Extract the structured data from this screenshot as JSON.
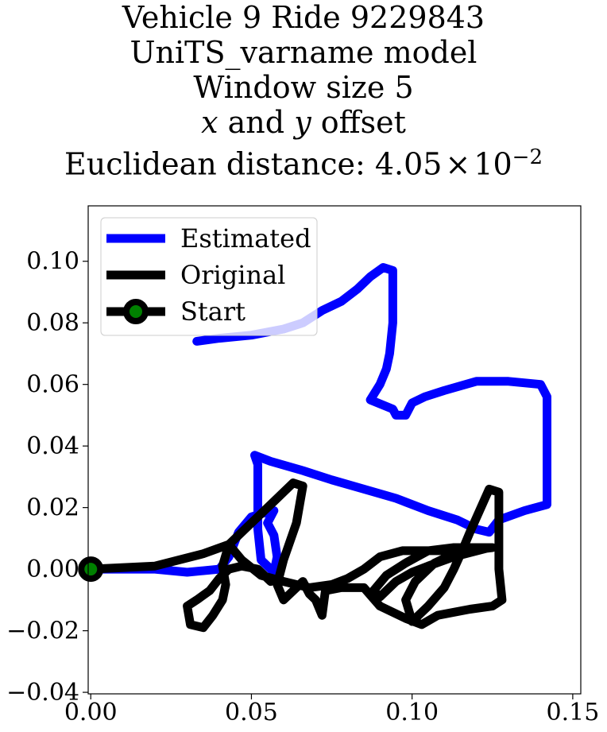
{
  "chart_data": {
    "type": "line",
    "title_lines": [
      "Vehicle 9 Ride 9229843",
      "UniTS_varname model",
      "Window size 5"
    ],
    "title_offset": {
      "x": "x",
      "and": " and ",
      "y": "y",
      "rest": " offset"
    },
    "title_distance": {
      "prefix": "Euclidean distance: ",
      "mantissa": "4.05",
      "times": "×",
      "base": "10",
      "exponent": "−2"
    },
    "xlim": [
      -0.0008,
      0.1525
    ],
    "ylim": [
      -0.0405,
      0.118
    ],
    "x_ticks": [
      {
        "value": 0.0,
        "label": "0.00"
      },
      {
        "value": 0.05,
        "label": "0.05"
      },
      {
        "value": 0.1,
        "label": "0.10"
      },
      {
        "value": 0.15,
        "label": "0.15"
      }
    ],
    "y_ticks": [
      {
        "value": -0.04,
        "label": "−0.04"
      },
      {
        "value": -0.02,
        "label": "−0.02"
      },
      {
        "value": 0.0,
        "label": "0.00"
      },
      {
        "value": 0.02,
        "label": "0.02"
      },
      {
        "value": 0.04,
        "label": "0.04"
      },
      {
        "value": 0.06,
        "label": "0.06"
      },
      {
        "value": 0.08,
        "label": "0.08"
      },
      {
        "value": 0.1,
        "label": "0.10"
      }
    ],
    "grid": false,
    "legend_position": "upper-left",
    "series": [
      {
        "name": "Estimated",
        "color": "#0000ff",
        "points": [
          [
            0.0,
            0.0
          ],
          [
            0.02,
            0.0
          ],
          [
            0.03,
            -0.001
          ],
          [
            0.04,
            0.0
          ],
          [
            0.043,
            0.004
          ],
          [
            0.046,
            0.012
          ],
          [
            0.05,
            0.017
          ],
          [
            0.053,
            0.018
          ],
          [
            0.057,
            0.019
          ],
          [
            0.055,
            0.015
          ],
          [
            0.057,
            0.011
          ],
          [
            0.058,
            0.004
          ],
          [
            0.057,
            -0.001
          ],
          [
            0.053,
            0.003
          ],
          [
            0.052,
            0.013
          ],
          [
            0.052,
            0.022
          ],
          [
            0.052,
            0.028
          ],
          [
            0.052,
            0.034
          ],
          [
            0.051,
            0.037
          ],
          [
            0.056,
            0.035
          ],
          [
            0.066,
            0.032
          ],
          [
            0.075,
            0.029
          ],
          [
            0.085,
            0.026
          ],
          [
            0.095,
            0.023
          ],
          [
            0.105,
            0.019
          ],
          [
            0.114,
            0.016
          ],
          [
            0.12,
            0.013
          ],
          [
            0.124,
            0.012
          ],
          [
            0.127,
            0.016
          ],
          [
            0.135,
            0.019
          ],
          [
            0.142,
            0.021
          ],
          [
            0.142,
            0.03
          ],
          [
            0.142,
            0.045
          ],
          [
            0.142,
            0.056
          ],
          [
            0.14,
            0.06
          ],
          [
            0.13,
            0.061
          ],
          [
            0.12,
            0.061
          ],
          [
            0.11,
            0.058
          ],
          [
            0.104,
            0.056
          ],
          [
            0.1,
            0.054
          ],
          [
            0.098,
            0.05
          ],
          [
            0.095,
            0.05
          ],
          [
            0.094,
            0.052
          ],
          [
            0.087,
            0.055
          ],
          [
            0.09,
            0.06
          ],
          [
            0.092,
            0.065
          ],
          [
            0.093,
            0.07
          ],
          [
            0.094,
            0.08
          ],
          [
            0.094,
            0.091
          ],
          [
            0.094,
            0.097
          ],
          [
            0.091,
            0.098
          ],
          [
            0.087,
            0.095
          ],
          [
            0.083,
            0.091
          ],
          [
            0.078,
            0.087
          ],
          [
            0.072,
            0.084
          ],
          [
            0.066,
            0.08
          ],
          [
            0.06,
            0.078
          ],
          [
            0.05,
            0.076
          ],
          [
            0.04,
            0.075
          ],
          [
            0.033,
            0.074
          ]
        ]
      },
      {
        "name": "Original",
        "color": "#000000",
        "points": [
          [
            0.0,
            0.0
          ],
          [
            0.02,
            0.001
          ],
          [
            0.035,
            0.005
          ],
          [
            0.043,
            0.008
          ],
          [
            0.047,
            0.012
          ],
          [
            0.053,
            0.018
          ],
          [
            0.057,
            0.022
          ],
          [
            0.063,
            0.028
          ],
          [
            0.066,
            0.027
          ],
          [
            0.064,
            0.015
          ],
          [
            0.06,
            0.003
          ],
          [
            0.058,
            -0.005
          ],
          [
            0.06,
            -0.01
          ],
          [
            0.064,
            -0.006
          ],
          [
            0.066,
            -0.004
          ],
          [
            0.068,
            -0.008
          ],
          [
            0.07,
            -0.01
          ],
          [
            0.072,
            -0.015
          ],
          [
            0.073,
            -0.007
          ],
          [
            0.078,
            -0.006
          ],
          [
            0.085,
            -0.006
          ],
          [
            0.09,
            -0.012
          ],
          [
            0.098,
            -0.016
          ],
          [
            0.103,
            -0.018
          ],
          [
            0.108,
            -0.015
          ],
          [
            0.118,
            -0.013
          ],
          [
            0.125,
            -0.012
          ],
          [
            0.128,
            -0.01
          ],
          [
            0.127,
            0.0
          ],
          [
            0.127,
            0.012
          ],
          [
            0.127,
            0.025
          ],
          [
            0.124,
            0.026
          ],
          [
            0.121,
            0.019
          ],
          [
            0.118,
            0.012
          ],
          [
            0.116,
            0.007
          ],
          [
            0.113,
            0.0
          ],
          [
            0.11,
            -0.006
          ],
          [
            0.105,
            -0.012
          ],
          [
            0.1,
            -0.017
          ],
          [
            0.098,
            -0.01
          ],
          [
            0.101,
            -0.004
          ],
          [
            0.107,
            0.002
          ],
          [
            0.115,
            0.006
          ],
          [
            0.124,
            0.007
          ],
          [
            0.113,
            0.004
          ],
          [
            0.105,
            0.001
          ],
          [
            0.1,
            -0.001
          ],
          [
            0.095,
            -0.004
          ],
          [
            0.09,
            -0.009
          ],
          [
            0.088,
            -0.007
          ],
          [
            0.092,
            -0.002
          ],
          [
            0.098,
            0.002
          ],
          [
            0.105,
            0.006
          ],
          [
            0.113,
            0.007
          ],
          [
            0.125,
            0.007
          ],
          [
            0.117,
            0.006
          ],
          [
            0.107,
            0.006
          ],
          [
            0.097,
            0.006
          ],
          [
            0.09,
            0.004
          ],
          [
            0.085,
            0.0
          ],
          [
            0.08,
            -0.003
          ],
          [
            0.075,
            -0.005
          ],
          [
            0.068,
            -0.006
          ],
          [
            0.06,
            -0.004
          ],
          [
            0.053,
            -0.002
          ],
          [
            0.047,
            0.003
          ],
          [
            0.043,
            0.008
          ],
          [
            0.041,
            0.001
          ],
          [
            0.042,
            -0.005
          ],
          [
            0.041,
            -0.01
          ],
          [
            0.038,
            -0.015
          ],
          [
            0.035,
            -0.019
          ],
          [
            0.031,
            -0.018
          ],
          [
            0.03,
            -0.012
          ],
          [
            0.033,
            -0.01
          ],
          [
            0.037,
            -0.007
          ],
          [
            0.04,
            -0.003
          ],
          [
            0.043,
            0.0
          ],
          [
            0.047,
            0.001
          ],
          [
            0.052,
            0.0
          ],
          [
            0.056,
            -0.004
          ]
        ]
      },
      {
        "name": "Start",
        "color": "#000000",
        "marker_face": "#008000",
        "points": [
          [
            0.0,
            0.0
          ]
        ]
      }
    ]
  }
}
